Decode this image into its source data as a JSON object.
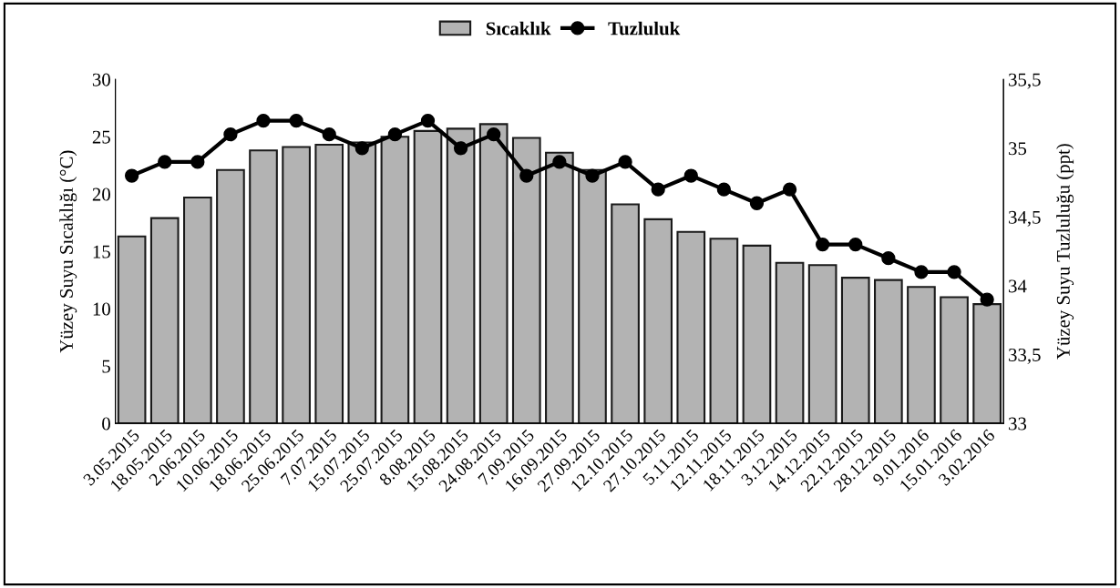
{
  "chart_data": {
    "type": "bar",
    "categories": [
      "3.05.2015",
      "18.05.2015",
      "2.06.2015",
      "10.06.2015",
      "18.06.2015",
      "25.06.2015",
      "7.07.2015",
      "15.07.2015",
      "25.07.2015",
      "8.08.2015",
      "15.08.2015",
      "24.08.2015",
      "7.09.2015",
      "16.09.2015",
      "27.09.2015",
      "12.10.2015",
      "27.10.2015",
      "5.11.2015",
      "12.11.2015",
      "18.11.2015",
      "3.12.2015",
      "14.12.2015",
      "22.12.2015",
      "28.12.2015",
      "9.01.2016",
      "15.01.2016",
      "3.02.2016"
    ],
    "ylabel": "Yüzey Suyu Sıcaklığı (°C)",
    "y2label": "Yüzey Suyu Tuzluluğu (ppt)",
    "ylim": [
      0,
      30
    ],
    "yticks": [
      0,
      5,
      10,
      15,
      20,
      25,
      30
    ],
    "y2lim": [
      33,
      35.5
    ],
    "y2ticks": [
      {
        "value": 33,
        "label": "33"
      },
      {
        "value": 33.5,
        "label": "33,5"
      },
      {
        "value": 34,
        "label": "34"
      },
      {
        "value": 34.5,
        "label": "34,5"
      },
      {
        "value": 35,
        "label": "35"
      },
      {
        "value": 35.5,
        "label": "35,5"
      }
    ],
    "legend": "top",
    "grid": false,
    "series": [
      {
        "name": "Sıcaklık",
        "color": "#b3b3b3",
        "values": [
          16.3,
          17.9,
          19.7,
          22.1,
          23.8,
          24.1,
          24.3,
          24.5,
          25.0,
          25.5,
          25.7,
          26.1,
          24.9,
          23.6,
          22.1,
          19.1,
          17.8,
          16.7,
          16.1,
          15.5,
          14.0,
          13.8,
          12.7,
          12.5,
          11.9,
          11.0,
          10.4
        ]
      },
      {
        "name": "Tuzluluk",
        "type": "line",
        "axis": "y2",
        "color": "#000000",
        "marker": "circle",
        "line_style": "solid",
        "values": [
          34.8,
          34.9,
          34.9,
          35.1,
          35.2,
          35.2,
          35.1,
          35.0,
          35.1,
          35.2,
          35.0,
          35.1,
          34.8,
          34.9,
          34.8,
          34.9,
          34.7,
          34.8,
          34.7,
          34.6,
          34.7,
          34.3,
          34.3,
          34.2,
          34.1,
          34.1,
          33.9
        ]
      }
    ]
  }
}
